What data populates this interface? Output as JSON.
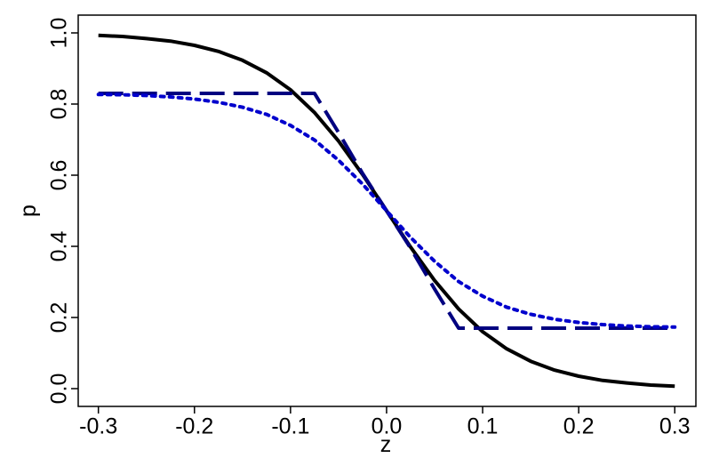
{
  "chart_data": {
    "type": "line",
    "x_label": "z",
    "y_label": "p",
    "x": [
      -0.3,
      -0.275,
      -0.25,
      -0.225,
      -0.2,
      -0.175,
      -0.15,
      -0.125,
      -0.1,
      -0.075,
      -0.05,
      -0.025,
      0,
      0.025,
      0.05,
      0.075,
      0.1,
      0.125,
      0.15,
      0.175,
      0.2,
      0.225,
      0.25,
      0.275,
      0.3
    ],
    "series": [
      {
        "color": "#000000",
        "dash": "solid",
        "values": [
          0.993,
          0.99,
          0.984,
          0.977,
          0.965,
          0.948,
          0.923,
          0.888,
          0.84,
          0.776,
          0.696,
          0.602,
          0.5,
          0.398,
          0.304,
          0.224,
          0.16,
          0.112,
          0.077,
          0.052,
          0.035,
          0.023,
          0.016,
          0.01,
          0.007
        ]
      },
      {
        "color": "#000080",
        "dash": "dashed",
        "values": [
          0.83,
          0.83,
          0.83,
          0.83,
          0.83,
          0.83,
          0.83,
          0.83,
          0.83,
          0.83,
          0.72,
          0.605,
          0.5,
          0.395,
          0.28,
          0.17,
          0.17,
          0.17,
          0.17,
          0.17,
          0.17,
          0.17,
          0.17,
          0.17,
          0.17
        ]
      },
      {
        "color": "#0000cd",
        "dash": "dotted",
        "values": [
          0.827,
          0.826,
          0.824,
          0.82,
          0.814,
          0.805,
          0.791,
          0.771,
          0.74,
          0.699,
          0.642,
          0.575,
          0.5,
          0.425,
          0.358,
          0.301,
          0.26,
          0.229,
          0.209,
          0.195,
          0.186,
          0.18,
          0.176,
          0.174,
          0.173
        ]
      }
    ],
    "xlim": [
      -0.321,
      0.322
    ],
    "ylim": [
      -0.05,
      1.05
    ],
    "xticks": [
      -0.3,
      -0.2,
      -0.1,
      {
        "value": 0,
        "label": "0.0"
      },
      0.1,
      0.2,
      0.3
    ],
    "yticks": [
      {
        "value": 0,
        "label": "0.0"
      },
      0.2,
      0.4,
      0.6,
      0.8,
      {
        "value": 1,
        "label": "1.0"
      }
    ],
    "grid": false
  }
}
